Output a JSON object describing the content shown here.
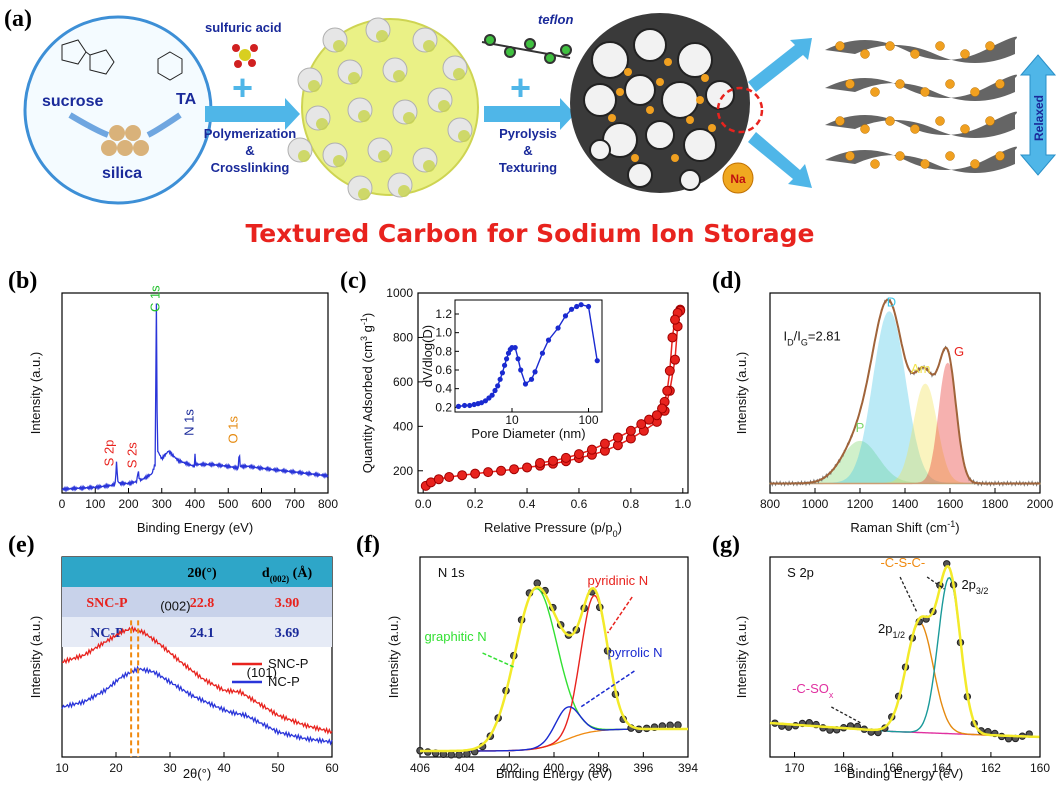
{
  "panel_labels": {
    "a": "(a)",
    "b": "(b)",
    "c": "(c)",
    "d": "(d)",
    "e": "(e)",
    "f": "(f)",
    "g": "(g)"
  },
  "scheme": {
    "sucrose": "sucrose",
    "ta": "TA",
    "silica": "silica",
    "sulfuric_acid": "sulfuric acid",
    "teflon": "teflon",
    "step1_line1": "Polymerization",
    "step1_line2": "&",
    "step1_line3": "Crosslinking",
    "step2_line1": "Pyrolysis",
    "step2_line2": "&",
    "step2_line3": "Texturing",
    "na": "Na",
    "relaxed": "Relaxed",
    "title": "Textured Carbon for Sodium Ion Storage",
    "colors": {
      "title": "#e8231e",
      "step_text": "#1a2a9a",
      "arrow": "#4fb6e8"
    }
  },
  "chart_data": [
    {
      "id": "b",
      "type": "line",
      "xlabel": "Binding Energy (eV)",
      "ylabel": "Intensity (a.u.)",
      "xlim": [
        0,
        800
      ],
      "xticks": [
        0,
        100,
        200,
        300,
        400,
        500,
        600,
        700,
        800
      ],
      "series": [
        {
          "color": "#2a35d9",
          "x": [
            0,
            100,
            150,
            160,
            164,
            168,
            175,
            200,
            225,
            229,
            233,
            240,
            270,
            280,
            284,
            286,
            288,
            300,
            320,
            350,
            398,
            400,
            402,
            450,
            500,
            530,
            533,
            536,
            560,
            600,
            700,
            800
          ],
          "y": [
            0.02,
            0.03,
            0.04,
            0.05,
            0.16,
            0.06,
            0.05,
            0.05,
            0.06,
            0.12,
            0.07,
            0.07,
            0.1,
            0.15,
            1.0,
            0.42,
            0.22,
            0.18,
            0.22,
            0.17,
            0.14,
            0.2,
            0.15,
            0.15,
            0.14,
            0.13,
            0.22,
            0.14,
            0.14,
            0.13,
            0.11,
            0.09
          ]
        }
      ],
      "annotations": [
        {
          "text": "C 1s",
          "x": 293,
          "y": 0.95,
          "color": "#1fbf2a"
        },
        {
          "text": "N 1s",
          "x": 395,
          "y": 0.3,
          "color": "#1a2a9a"
        },
        {
          "text": "O 1s",
          "x": 528,
          "y": 0.26,
          "color": "#e58a10"
        },
        {
          "text": "S 2p",
          "x": 155,
          "y": 0.14,
          "color": "#e8231e"
        },
        {
          "text": "S 2s",
          "x": 224,
          "y": 0.13,
          "color": "#e8231e"
        }
      ]
    },
    {
      "id": "c",
      "type": "scatter",
      "xlabel": "Relative Pressure (p/p0)",
      "ylabel": "Quantity Adsorbed (cm3 g-1)",
      "xlim": [
        0,
        1
      ],
      "ylim": [
        100,
        1000
      ],
      "xticks": [
        0.0,
        0.2,
        0.4,
        0.6,
        0.8,
        1.0
      ],
      "yticks": [
        200,
        400,
        600,
        800,
        1000
      ],
      "adsorption": {
        "color": "#e8231e",
        "x": [
          0.01,
          0.03,
          0.06,
          0.1,
          0.15,
          0.2,
          0.25,
          0.3,
          0.35,
          0.4,
          0.45,
          0.5,
          0.55,
          0.6,
          0.65,
          0.7,
          0.75,
          0.8,
          0.85,
          0.9,
          0.93,
          0.95,
          0.97,
          0.98,
          0.99
        ],
        "y": [
          132,
          148,
          162,
          172,
          180,
          187,
          194,
          200,
          207,
          215,
          223,
          232,
          243,
          257,
          272,
          290,
          315,
          345,
          380,
          420,
          470,
          560,
          700,
          850,
          925
        ]
      },
      "desorption": {
        "color": "#e8231e",
        "x": [
          0.99,
          0.98,
          0.97,
          0.96,
          0.95,
          0.94,
          0.93,
          0.92,
          0.9,
          0.87,
          0.84,
          0.8,
          0.75,
          0.7,
          0.65,
          0.6,
          0.55,
          0.5,
          0.45
        ],
        "y": [
          920,
          910,
          880,
          800,
          650,
          560,
          510,
          480,
          450,
          430,
          410,
          380,
          350,
          322,
          295,
          275,
          258,
          245,
          235
        ]
      },
      "inset": {
        "xlabel": "Pore Diameter (nm)",
        "ylabel": "dV/dlog(D)",
        "ylim": [
          0.2,
          1.3
        ],
        "yticks": [
          0.2,
          0.4,
          0.6,
          0.8,
          1.0,
          1.2
        ],
        "xtick_labels": [
          "10",
          "100"
        ],
        "x": [
          2,
          2.4,
          2.8,
          3.2,
          3.6,
          4,
          4.5,
          5,
          5.5,
          6,
          6.5,
          7,
          7.5,
          8,
          8.5,
          9,
          9.5,
          10,
          11,
          12,
          13,
          15,
          18,
          20,
          25,
          30,
          40,
          50,
          60,
          70,
          80,
          100,
          130
        ],
        "y": [
          0.21,
          0.22,
          0.22,
          0.23,
          0.24,
          0.25,
          0.27,
          0.3,
          0.33,
          0.38,
          0.43,
          0.5,
          0.57,
          0.65,
          0.72,
          0.78,
          0.82,
          0.84,
          0.84,
          0.72,
          0.6,
          0.45,
          0.5,
          0.58,
          0.78,
          0.92,
          1.05,
          1.18,
          1.25,
          1.28,
          1.3,
          1.28,
          0.7
        ]
      }
    },
    {
      "id": "d",
      "type": "line",
      "xlabel": "Raman Shift (cm-1)",
      "ylabel": "Intensity (a.u.)",
      "xlim": [
        800,
        2000
      ],
      "xticks": [
        800,
        1000,
        1200,
        1400,
        1600,
        1800,
        2000
      ],
      "ratio_label": "ID/IG=2.81",
      "peaks": [
        {
          "name": "P",
          "center": 1200,
          "height": 0.22,
          "width": 80,
          "color": "#7bd66a"
        },
        {
          "name": "D",
          "center": 1330,
          "height": 0.9,
          "width": 70,
          "color": "#3ec6e8"
        },
        {
          "name": "Am",
          "center": 1490,
          "height": 0.52,
          "width": 50,
          "color": "#f2e24a"
        },
        {
          "name": "G",
          "center": 1590,
          "height": 0.63,
          "width": 38,
          "color": "#e8231e"
        }
      ],
      "envelope_color": "#a0643a"
    },
    {
      "id": "e",
      "type": "line",
      "xlabel": "2θ(°)",
      "ylabel": "Intensity (a.u.)",
      "xlim": [
        10,
        60
      ],
      "xticks": [
        10,
        20,
        30,
        40,
        50,
        60
      ],
      "series": [
        {
          "name": "SNC-P",
          "color": "#e8231e",
          "x": [
            10,
            14,
            18,
            21,
            22.8,
            25,
            28,
            32,
            36,
            40,
            43,
            46,
            50,
            55,
            60
          ],
          "y": [
            0.62,
            0.66,
            0.74,
            0.8,
            0.82,
            0.8,
            0.73,
            0.62,
            0.52,
            0.45,
            0.44,
            0.38,
            0.3,
            0.24,
            0.2
          ]
        },
        {
          "name": "NC-P",
          "color": "#2a35d9",
          "x": [
            10,
            14,
            18,
            21,
            24.1,
            27,
            30,
            34,
            38,
            41,
            44,
            47,
            50,
            55,
            60
          ],
          "y": [
            0.35,
            0.38,
            0.45,
            0.53,
            0.58,
            0.56,
            0.5,
            0.42,
            0.36,
            0.32,
            0.3,
            0.25,
            0.2,
            0.16,
            0.14
          ]
        }
      ],
      "annotations": [
        {
          "text": "(002)",
          "x": 31,
          "y": 0.93
        },
        {
          "text": "(101)",
          "x": 47,
          "y": 0.53
        }
      ],
      "table": {
        "headers": [
          "",
          "2θ(°)",
          "d(002) (Å)"
        ],
        "rows": [
          [
            "SNC-P",
            "22.8",
            "3.90"
          ],
          [
            "NC-P",
            "24.1",
            "3.69"
          ]
        ]
      }
    },
    {
      "id": "f",
      "type": "line",
      "xlabel": "Binding Energy (eV)",
      "ylabel": "Intensity (a.u.)",
      "xlim": [
        406,
        394
      ],
      "xticks": [
        406,
        404,
        402,
        400,
        398,
        396,
        394
      ],
      "title_label": "N 1s",
      "peaks": [
        {
          "name": "graphitic N",
          "center": 400.8,
          "height": 0.8,
          "width": 0.95,
          "color": "#33e033"
        },
        {
          "name": "pyridinic N",
          "center": 398.2,
          "height": 0.68,
          "width": 0.6,
          "color": "#e8231e"
        },
        {
          "name": "pyrrolic N",
          "center": 399.4,
          "height": 0.16,
          "width": 0.55,
          "color": "#1a2ad0"
        }
      ]
    },
    {
      "id": "g",
      "type": "line",
      "xlabel": "Binding Energy (eV)",
      "ylabel": "Intensity (a.u.)",
      "xlim": [
        171,
        160
      ],
      "xticks": [
        170,
        168,
        166,
        164,
        162,
        160
      ],
      "title_label": "S 2p",
      "peaks": [
        {
          "name": "2p1/2",
          "center": 164.9,
          "height": 0.55,
          "width": 0.55,
          "color": "#e58a10"
        },
        {
          "name": "2p3/2",
          "center": 163.7,
          "height": 0.78,
          "width": 0.45,
          "color": "#1a9a9a"
        }
      ],
      "labels": {
        "cs": "-C-S-C-",
        "cso": "-C-SOx",
        "p12": "2p1/2",
        "p32": "2p3/2"
      }
    }
  ]
}
